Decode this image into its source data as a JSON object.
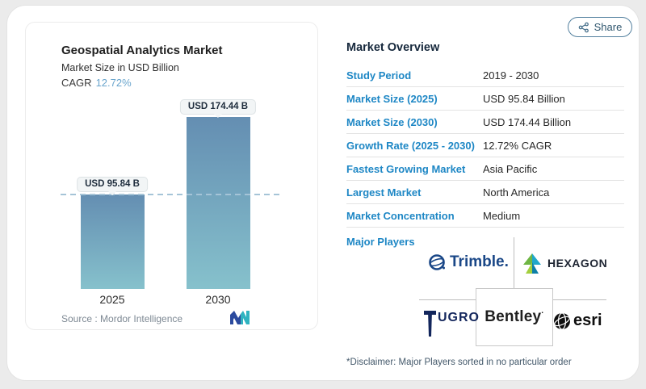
{
  "share": {
    "label": "Share"
  },
  "chart": {
    "title": "Geospatial Analytics Market",
    "subtitle": "Market Size in USD Billion",
    "cagr_label": "CAGR",
    "cagr_value": "12.72%",
    "source": "Source :  Mordor Intelligence",
    "bars": [
      {
        "year": "2025",
        "label": "USD 95.84 B"
      },
      {
        "year": "2030",
        "label": "USD 174.44 B"
      }
    ]
  },
  "chart_data": {
    "type": "bar",
    "categories": [
      "2025",
      "2030"
    ],
    "values": [
      95.84,
      174.44
    ],
    "bar_labels": [
      "USD 95.84 B",
      "USD 174.44 B"
    ],
    "title": "Geospatial Analytics Market",
    "subtitle": "Market Size in USD Billion",
    "cagr": "12.72%",
    "ylabel": "USD Billion",
    "xlabel": "",
    "ylim": [
      0,
      200
    ],
    "grid": false,
    "legend": false,
    "dashed_reference_line_at": 95.84,
    "bar_gradient": [
      "#648eb2",
      "#86c1cc"
    ],
    "source": "Mordor Intelligence"
  },
  "overview": {
    "heading": "Market Overview",
    "rows": [
      {
        "label": "Study Period",
        "value": "2019 - 2030"
      },
      {
        "label": "Market Size (2025)",
        "value": "USD 95.84 Billion"
      },
      {
        "label": "Market Size (2030)",
        "value": "USD 174.44 Billion"
      },
      {
        "label": "Growth Rate (2025 - 2030)",
        "value": "12.72% CAGR"
      },
      {
        "label": "Fastest Growing Market",
        "value": "Asia Pacific"
      },
      {
        "label": "Largest Market",
        "value": "North America"
      },
      {
        "label": "Market Concentration",
        "value": "Medium"
      }
    ],
    "major_players_label": "Major Players",
    "players": [
      {
        "name": "Trimble",
        "display": "Trimble."
      },
      {
        "name": "Hexagon",
        "display": "HEXAGON"
      },
      {
        "name": "Fugro",
        "display": "FUGRO",
        "display_rest": "UGRO"
      },
      {
        "name": "Bentley",
        "display": "Bentley",
        "mark": "·"
      },
      {
        "name": "Esri",
        "display": "esri"
      }
    ],
    "disclaimer": "*Disclaimer: Major Players sorted in no particular order"
  },
  "colors": {
    "page_background": "#ebebeb",
    "card_background": "#ffffff",
    "accent_blue": "#1e87c5",
    "cagr_blue": "#6aa5cd",
    "bar_top": "#648eb2",
    "bar_bottom": "#86c1cc",
    "dashed_line": "#a5c4d7",
    "heading_navy": "#16283c",
    "share_border": "#54819f",
    "logo_navy": "#2b4a9e",
    "logo_teal": "#2fb3c0"
  }
}
